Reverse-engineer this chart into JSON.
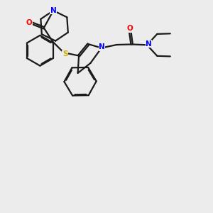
{
  "background_color": "#ececec",
  "bond_color": "#1a1a1a",
  "atom_colors": {
    "N": "#0000ff",
    "O": "#ff0000",
    "S": "#ccaa00"
  },
  "bond_width": 1.6,
  "figsize": [
    3.0,
    3.0
  ],
  "dpi": 100
}
